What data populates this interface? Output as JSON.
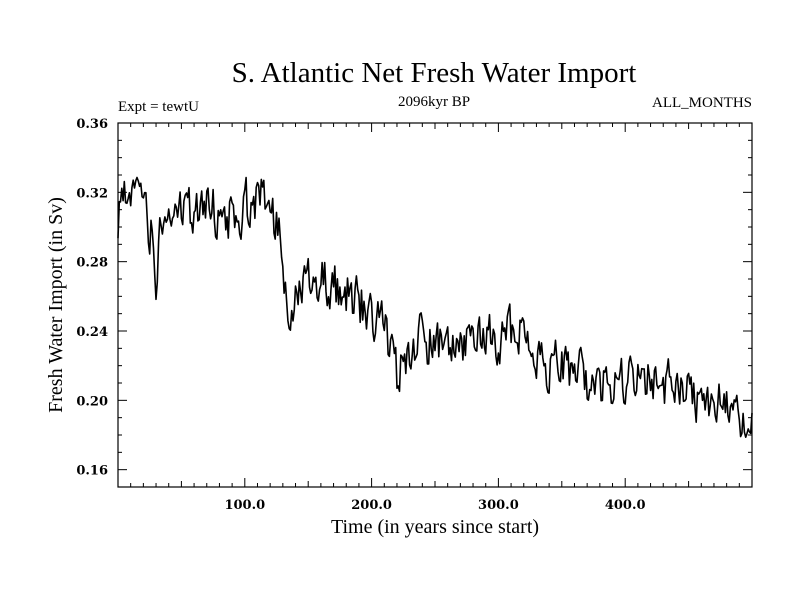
{
  "chart_data": {
    "type": "line",
    "title": "S. Atlantic Net Fresh Water Import",
    "subtitle_left": "Expt = tewtU",
    "subtitle_center": "2096kyr BP",
    "subtitle_right": "ALL_MONTHS",
    "xlabel": "Time (in years since start)",
    "ylabel": "Fresh Water Import (in Sv)",
    "xlim": [
      0,
      500
    ],
    "ylim": [
      0.15,
      0.36
    ],
    "x_ticks": [
      100,
      200,
      300,
      400
    ],
    "x_tick_labels": [
      "100.0",
      "200.0",
      "300.0",
      "400.0"
    ],
    "y_ticks": [
      0.16,
      0.2,
      0.24,
      0.28,
      0.32,
      0.36
    ],
    "y_tick_labels": [
      "0.16",
      "0.20",
      "0.24",
      "0.28",
      "0.32",
      "0.36"
    ],
    "grid": false,
    "series": [
      {
        "name": "Net Fresh Water Import",
        "color": "#000000",
        "x_start": 0,
        "x_step": 1,
        "anchors": [
          [
            0,
            0.305
          ],
          [
            3,
            0.322
          ],
          [
            8,
            0.315
          ],
          [
            12,
            0.325
          ],
          [
            20,
            0.31
          ],
          [
            26,
            0.3
          ],
          [
            30,
            0.27
          ],
          [
            35,
            0.305
          ],
          [
            45,
            0.31
          ],
          [
            55,
            0.305
          ],
          [
            65,
            0.315
          ],
          [
            75,
            0.31
          ],
          [
            85,
            0.305
          ],
          [
            95,
            0.31
          ],
          [
            105,
            0.315
          ],
          [
            112,
            0.318
          ],
          [
            118,
            0.31
          ],
          [
            125,
            0.3
          ],
          [
            130,
            0.285
          ],
          [
            134,
            0.25
          ],
          [
            140,
            0.265
          ],
          [
            150,
            0.275
          ],
          [
            160,
            0.27
          ],
          [
            170,
            0.265
          ],
          [
            180,
            0.262
          ],
          [
            190,
            0.255
          ],
          [
            200,
            0.25
          ],
          [
            210,
            0.245
          ],
          [
            220,
            0.215
          ],
          [
            230,
            0.23
          ],
          [
            240,
            0.235
          ],
          [
            250,
            0.23
          ],
          [
            260,
            0.232
          ],
          [
            270,
            0.228
          ],
          [
            280,
            0.232
          ],
          [
            290,
            0.238
          ],
          [
            300,
            0.235
          ],
          [
            310,
            0.24
          ],
          [
            320,
            0.242
          ],
          [
            325,
            0.235
          ],
          [
            330,
            0.225
          ],
          [
            340,
            0.22
          ],
          [
            350,
            0.222
          ],
          [
            360,
            0.215
          ],
          [
            370,
            0.212
          ],
          [
            380,
            0.21
          ],
          [
            390,
            0.205
          ],
          [
            400,
            0.21
          ],
          [
            410,
            0.212
          ],
          [
            420,
            0.21
          ],
          [
            430,
            0.208
          ],
          [
            440,
            0.21
          ],
          [
            450,
            0.205
          ],
          [
            460,
            0.2
          ],
          [
            470,
            0.198
          ],
          [
            480,
            0.195
          ],
          [
            490,
            0.192
          ],
          [
            500,
            0.185
          ]
        ],
        "noise_amplitude": 0.013,
        "seed": 2096
      }
    ]
  }
}
